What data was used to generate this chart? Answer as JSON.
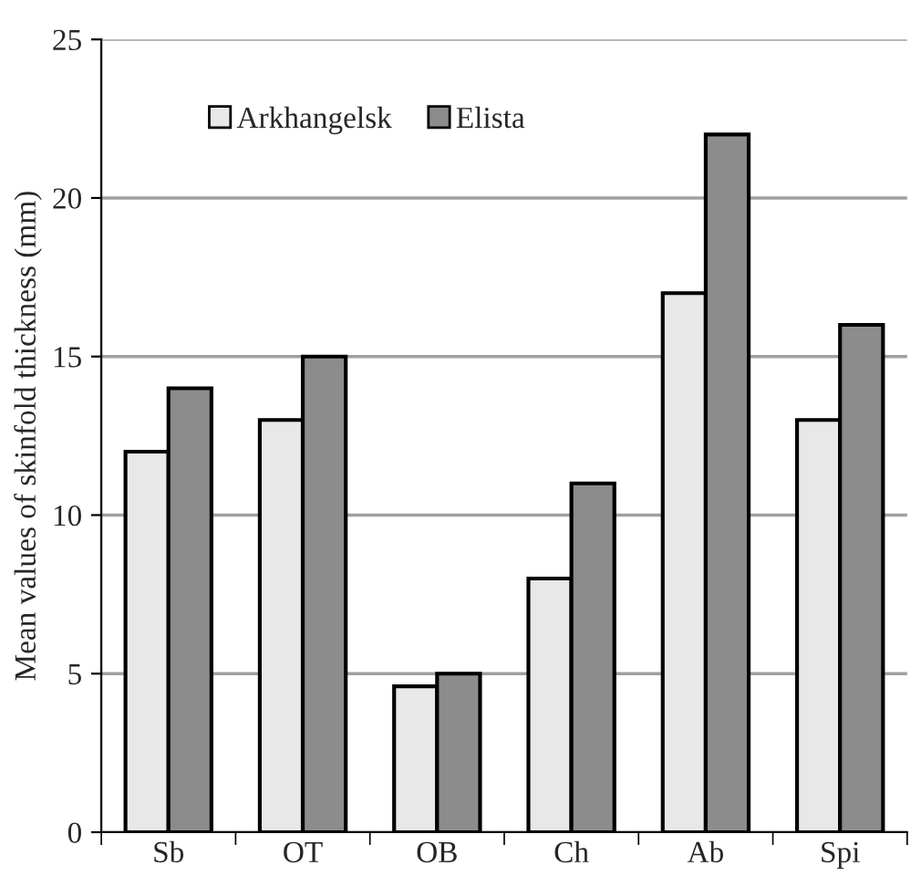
{
  "chart_data": {
    "type": "bar",
    "ylabel": "Mean values of skinfold thickness (mm)",
    "categories": [
      "Sb",
      "OT",
      "OB",
      "Ch",
      "Ab",
      "Spi"
    ],
    "series": [
      {
        "name": "Arkhangelsk",
        "color": "#e8e8e8",
        "values": [
          12,
          13,
          4.6,
          8,
          17,
          13
        ]
      },
      {
        "name": "Elista",
        "color": "#8c8c8c",
        "values": [
          14,
          15,
          5,
          11,
          22,
          16
        ]
      }
    ],
    "ylim": [
      0,
      25
    ],
    "yticks": [
      0,
      5,
      10,
      15,
      20,
      25
    ],
    "grid": "y",
    "legend": "top left"
  }
}
